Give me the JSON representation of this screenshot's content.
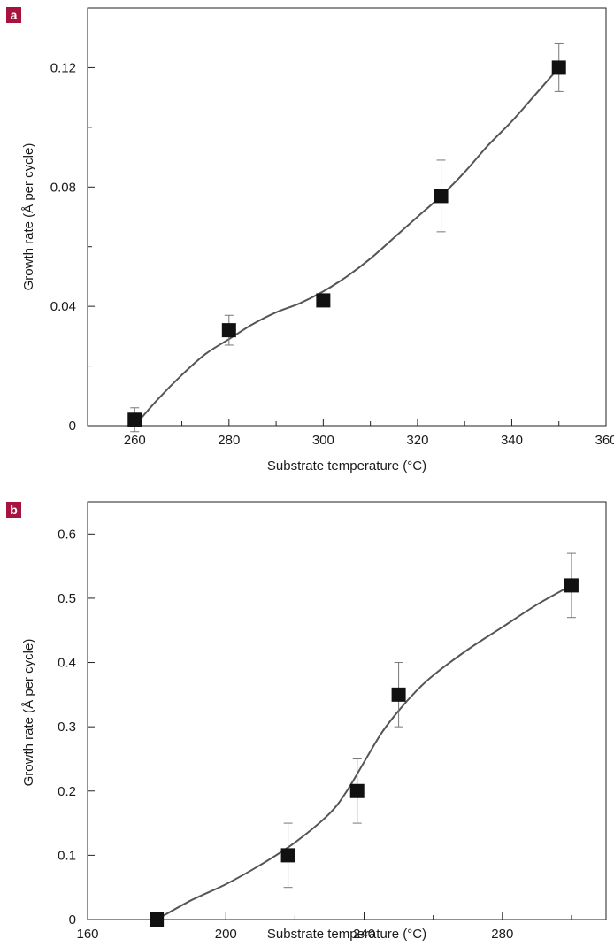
{
  "panel_badge_color": "#a8123e",
  "chart_data": [
    {
      "type": "scatter",
      "panel": "a",
      "xlabel": "Substrate temperature (°C)",
      "ylabel": "Growth rate (Å per cycle)",
      "xlim": [
        250,
        360
      ],
      "ylim": [
        0,
        0.14
      ],
      "xticks": [
        260,
        280,
        300,
        320,
        340,
        360
      ],
      "xtick_labels": [
        "260",
        "280",
        "300",
        "320",
        "340",
        "360"
      ],
      "xminor": [
        270,
        290,
        310,
        330,
        350
      ],
      "yticks": [
        0,
        0.04,
        0.08,
        0.12
      ],
      "ytick_labels": [
        "0",
        "0.04",
        "0.08",
        "0.12"
      ],
      "yminor": [
        0.02,
        0.06,
        0.1
      ],
      "grid": false,
      "series": [
        {
          "x": [
            260,
            280,
            300,
            325,
            350
          ],
          "y": [
            0.002,
            0.032,
            0.042,
            0.077,
            0.12
          ],
          "err": [
            0.004,
            0.005,
            0.002,
            0.012,
            0.008
          ]
        }
      ],
      "fit_curve": {
        "x": [
          260,
          265,
          270,
          275,
          280,
          285,
          290,
          295,
          300,
          305,
          310,
          315,
          320,
          325,
          330,
          335,
          340,
          345,
          350
        ],
        "y": [
          0.0,
          0.009,
          0.017,
          0.024,
          0.029,
          0.034,
          0.038,
          0.041,
          0.045,
          0.05,
          0.056,
          0.063,
          0.07,
          0.077,
          0.085,
          0.094,
          0.102,
          0.111,
          0.12
        ]
      }
    },
    {
      "type": "scatter",
      "panel": "b",
      "xlabel": "Substrate temperature (°C)",
      "ylabel": "Growth rate (Å per cycle)",
      "xlim": [
        160,
        310
      ],
      "ylim": [
        0,
        0.65
      ],
      "xticks": [
        160,
        200,
        240,
        280
      ],
      "xtick_labels": [
        "160",
        "200",
        "240",
        "280"
      ],
      "xminor": [
        180,
        220,
        260,
        300
      ],
      "yticks": [
        0,
        0.1,
        0.2,
        0.3,
        0.4,
        0.5,
        0.6
      ],
      "ytick_labels": [
        "0",
        "0.1",
        "0.2",
        "0.3",
        "0.4",
        "0.5",
        "0.6"
      ],
      "yminor": [],
      "grid": false,
      "series": [
        {
          "x": [
            180,
            218,
            238,
            250,
            300
          ],
          "y": [
            0.0,
            0.1,
            0.2,
            0.35,
            0.52
          ],
          "err": [
            0.0,
            0.05,
            0.05,
            0.05,
            0.05
          ]
        }
      ],
      "fit_curve": {
        "x": [
          180,
          190,
          200,
          210,
          220,
          230,
          235,
          240,
          245,
          250,
          255,
          260,
          270,
          280,
          290,
          300
        ],
        "y": [
          0.0,
          0.03,
          0.055,
          0.085,
          0.12,
          0.165,
          0.2,
          0.245,
          0.29,
          0.325,
          0.355,
          0.38,
          0.42,
          0.455,
          0.49,
          0.52
        ]
      }
    }
  ]
}
